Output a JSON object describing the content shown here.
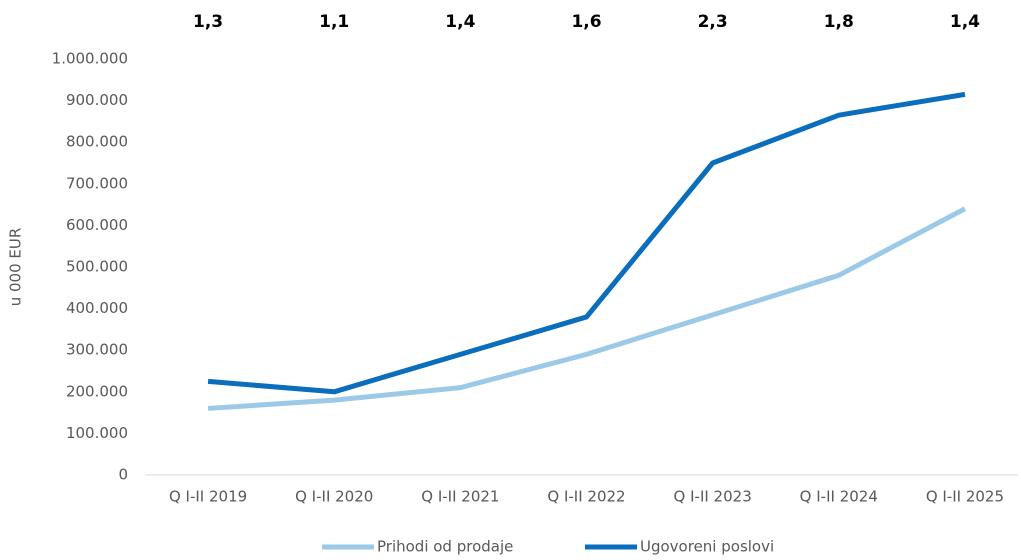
{
  "chart_data": {
    "type": "line",
    "y_axis_label": "u 000 EUR",
    "categories": [
      "Q I-II 2019",
      "Q I-II 2020",
      "Q I-II 2021",
      "Q I-II 2022",
      "Q I-II 2023",
      "Q I-II 2024",
      "Q I-II 2025"
    ],
    "annotations": [
      "1,3",
      "1,1",
      "1,4",
      "1,6",
      "2,3",
      "1,8",
      "1,4"
    ],
    "series": [
      {
        "name": "Prihodi od prodaje",
        "color": "#9dc9e8",
        "values": [
          160000,
          180000,
          210000,
          290000,
          385000,
          480000,
          640000
        ]
      },
      {
        "name": "Ugovoreni poslovi",
        "color": "#0a6ebd",
        "values": [
          225000,
          200000,
          290000,
          380000,
          750000,
          865000,
          915000
        ]
      }
    ],
    "ylim": [
      0,
      1000000
    ],
    "yticks": [
      0,
      {
        "value": 100000,
        "label": "100.000"
      },
      {
        "value": 200000,
        "label": "200.000"
      },
      {
        "value": 300000,
        "label": "300.000"
      },
      {
        "value": 400000,
        "label": "400.000"
      },
      {
        "value": 500000,
        "label": "500.000"
      },
      {
        "value": 600000,
        "label": "600.000"
      },
      {
        "value": 700000,
        "label": "700.000"
      },
      {
        "value": 800000,
        "label": "800.000"
      },
      {
        "value": 900000,
        "label": "900.000"
      },
      {
        "value": 1000000,
        "label": "1.000.000"
      }
    ],
    "legend": "bottom"
  }
}
